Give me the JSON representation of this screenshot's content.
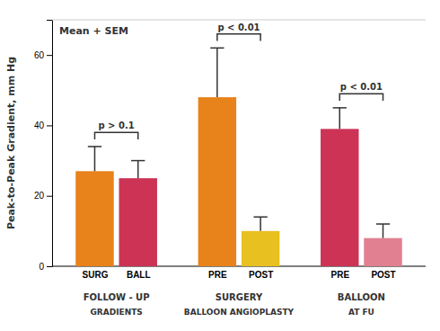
{
  "chart_data": {
    "type": "bar",
    "categories": [
      "SURG",
      "BALL",
      "PRE",
      "POST",
      "PRE",
      "POST"
    ],
    "values": [
      27,
      25,
      48,
      10,
      39,
      8
    ],
    "errors": [
      7,
      5,
      14,
      4,
      6,
      4
    ],
    "colors": [
      "#E8821A",
      "#CC3355",
      "#E8821A",
      "#E8C020",
      "#CC3355",
      "#E08090"
    ],
    "groups": [
      {
        "label": "FOLLOW - UP",
        "sublabel": "GRADIENTS",
        "annotation": "p > 0.1"
      },
      {
        "label": "SURGERY",
        "sublabel": "BALLOON ANGIOPLASTY",
        "annotation": "p < 0.01"
      },
      {
        "label": "BALLOON",
        "sublabel": "AT FU",
        "annotation": "p < 0.01"
      }
    ],
    "y_label": "Peak-to-Peak Gradient, mm Hg",
    "annotation": "Mean + SEM",
    "ylim": [
      0,
      70
    ],
    "yticks": [
      0,
      20,
      40,
      60
    ],
    "grid": false
  }
}
